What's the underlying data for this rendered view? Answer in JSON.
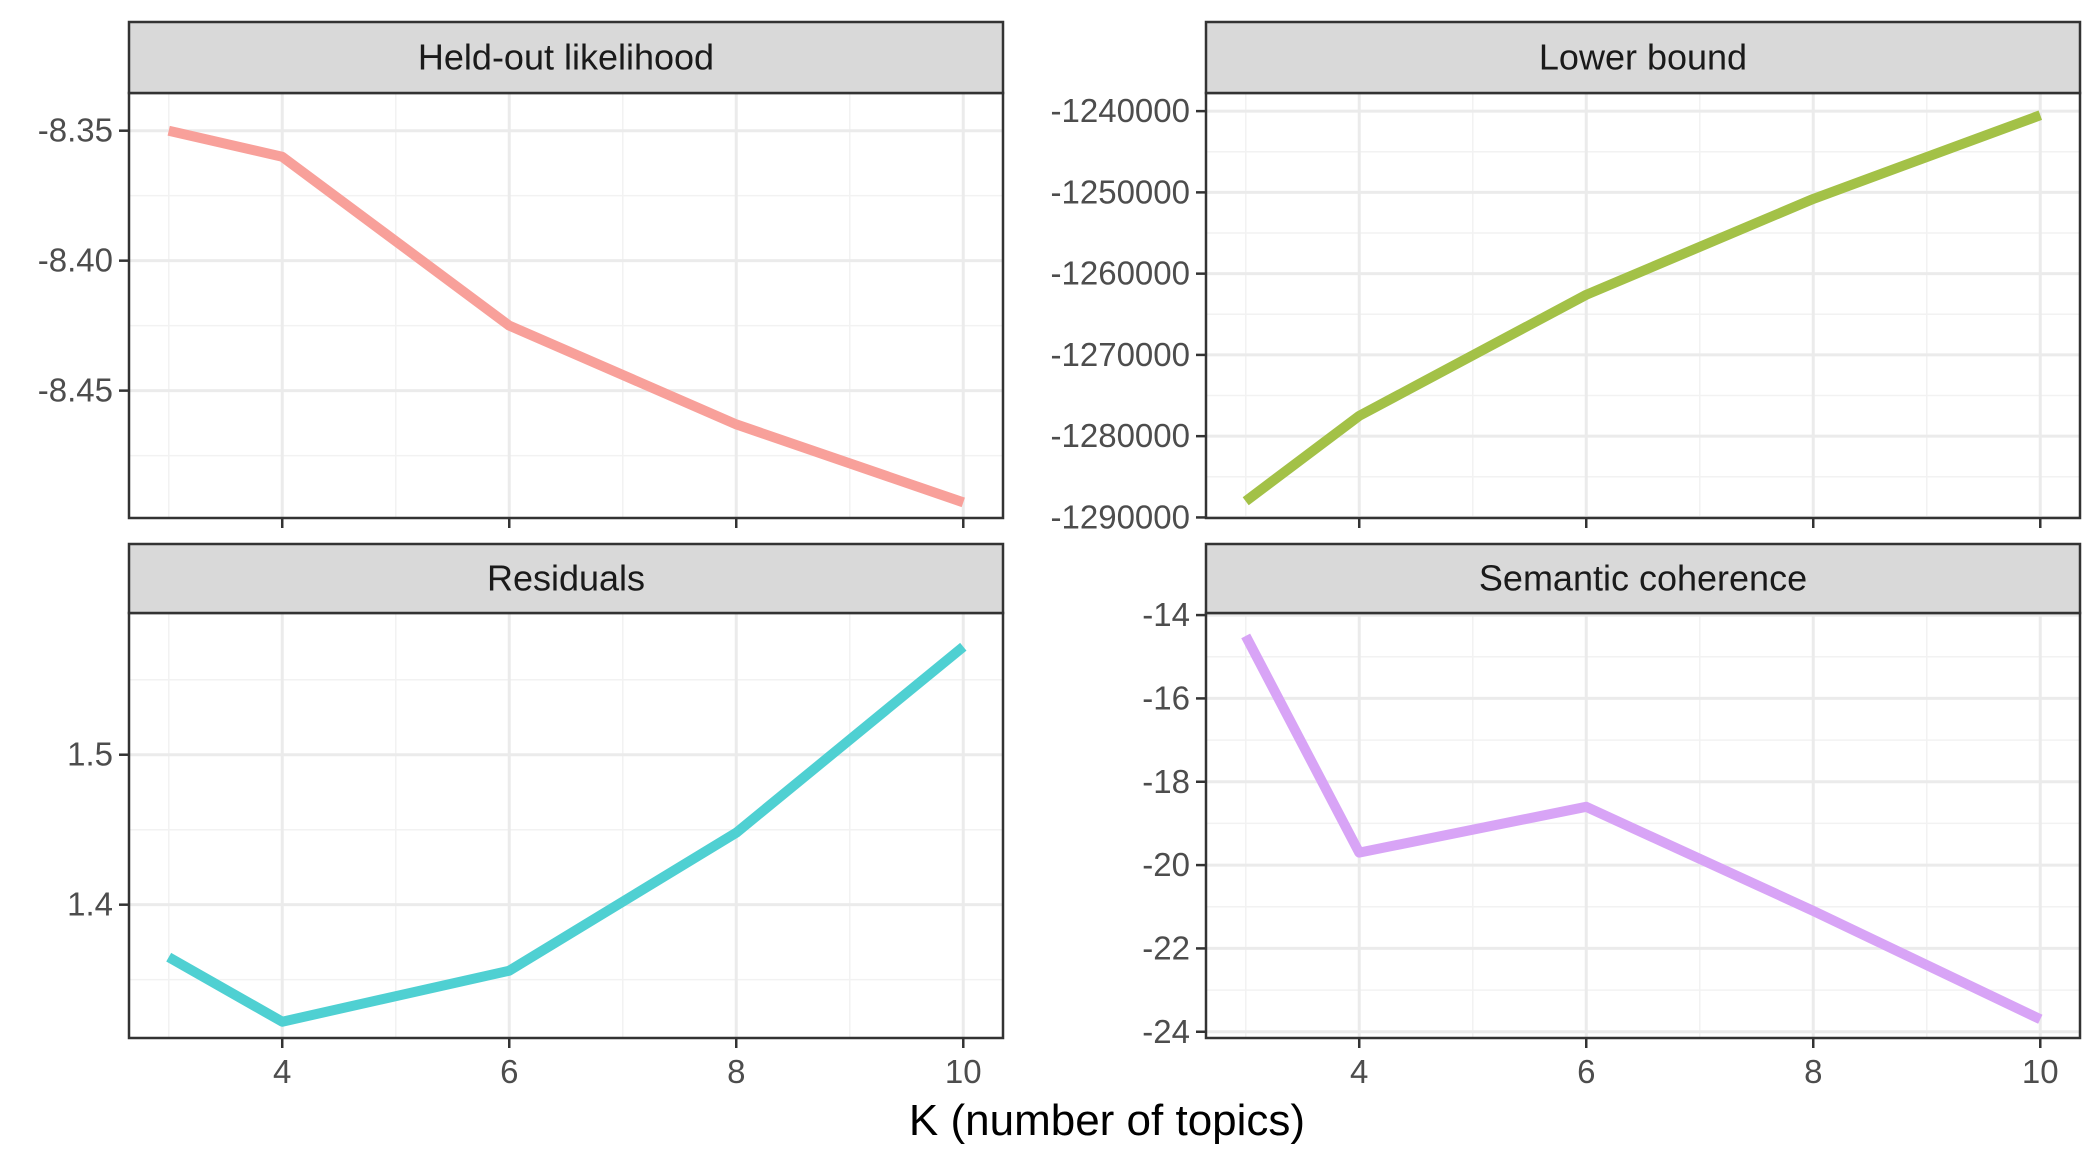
{
  "chart_data": {
    "type": "line",
    "xlabel": "K (number of topics)",
    "x_ticks": [
      4,
      6,
      8,
      10
    ],
    "xlim": [
      2.65,
      10.35
    ],
    "panels": [
      {
        "title": "Held-out likelihood",
        "color": "#F8A09A",
        "x": [
          3,
          4,
          6,
          8,
          10
        ],
        "y": [
          -8.35,
          -8.36,
          -8.425,
          -8.463,
          -8.493
        ],
        "ylim": [
          -8.499,
          -8.3355
        ],
        "y_ticks": [
          -8.35,
          -8.4,
          -8.45
        ],
        "y_tick_labels": [
          "-8.35",
          "-8.40",
          "-8.45"
        ]
      },
      {
        "title": "Lower bound",
        "color": "#A3C147",
        "x": [
          3,
          4,
          6,
          8,
          10
        ],
        "y": [
          -1288000,
          -1277500,
          -1262600,
          -1250800,
          -1240500
        ],
        "ylim": [
          -1290070,
          -1237770
        ],
        "y_ticks": [
          -1240000,
          -1250000,
          -1260000,
          -1270000,
          -1280000,
          -1290000
        ],
        "y_tick_labels": [
          "-1240000",
          "-1250000",
          "-1260000",
          "-1270000",
          "-1280000",
          "-1290000"
        ]
      },
      {
        "title": "Residuals",
        "color": "#4FD0D2",
        "x": [
          3,
          4,
          6,
          8,
          10
        ],
        "y": [
          1.365,
          1.322,
          1.356,
          1.448,
          1.572
        ],
        "ylim": [
          1.3111,
          1.5945
        ],
        "y_ticks": [
          1.4,
          1.5
        ],
        "y_tick_labels": [
          "1.4",
          "1.5"
        ]
      },
      {
        "title": "Semantic coherence",
        "color": "#D8A4F6",
        "x": [
          3,
          4,
          6,
          8,
          10
        ],
        "y": [
          -14.5,
          -19.7,
          -18.6,
          -21.1,
          -23.7
        ],
        "ylim": [
          -24.15,
          -13.95
        ],
        "y_ticks": [
          -14,
          -16,
          -18,
          -20,
          -22,
          -24
        ],
        "y_tick_labels": [
          "-14",
          "-16",
          "-18",
          "-20",
          "-22",
          "-24"
        ]
      }
    ]
  }
}
